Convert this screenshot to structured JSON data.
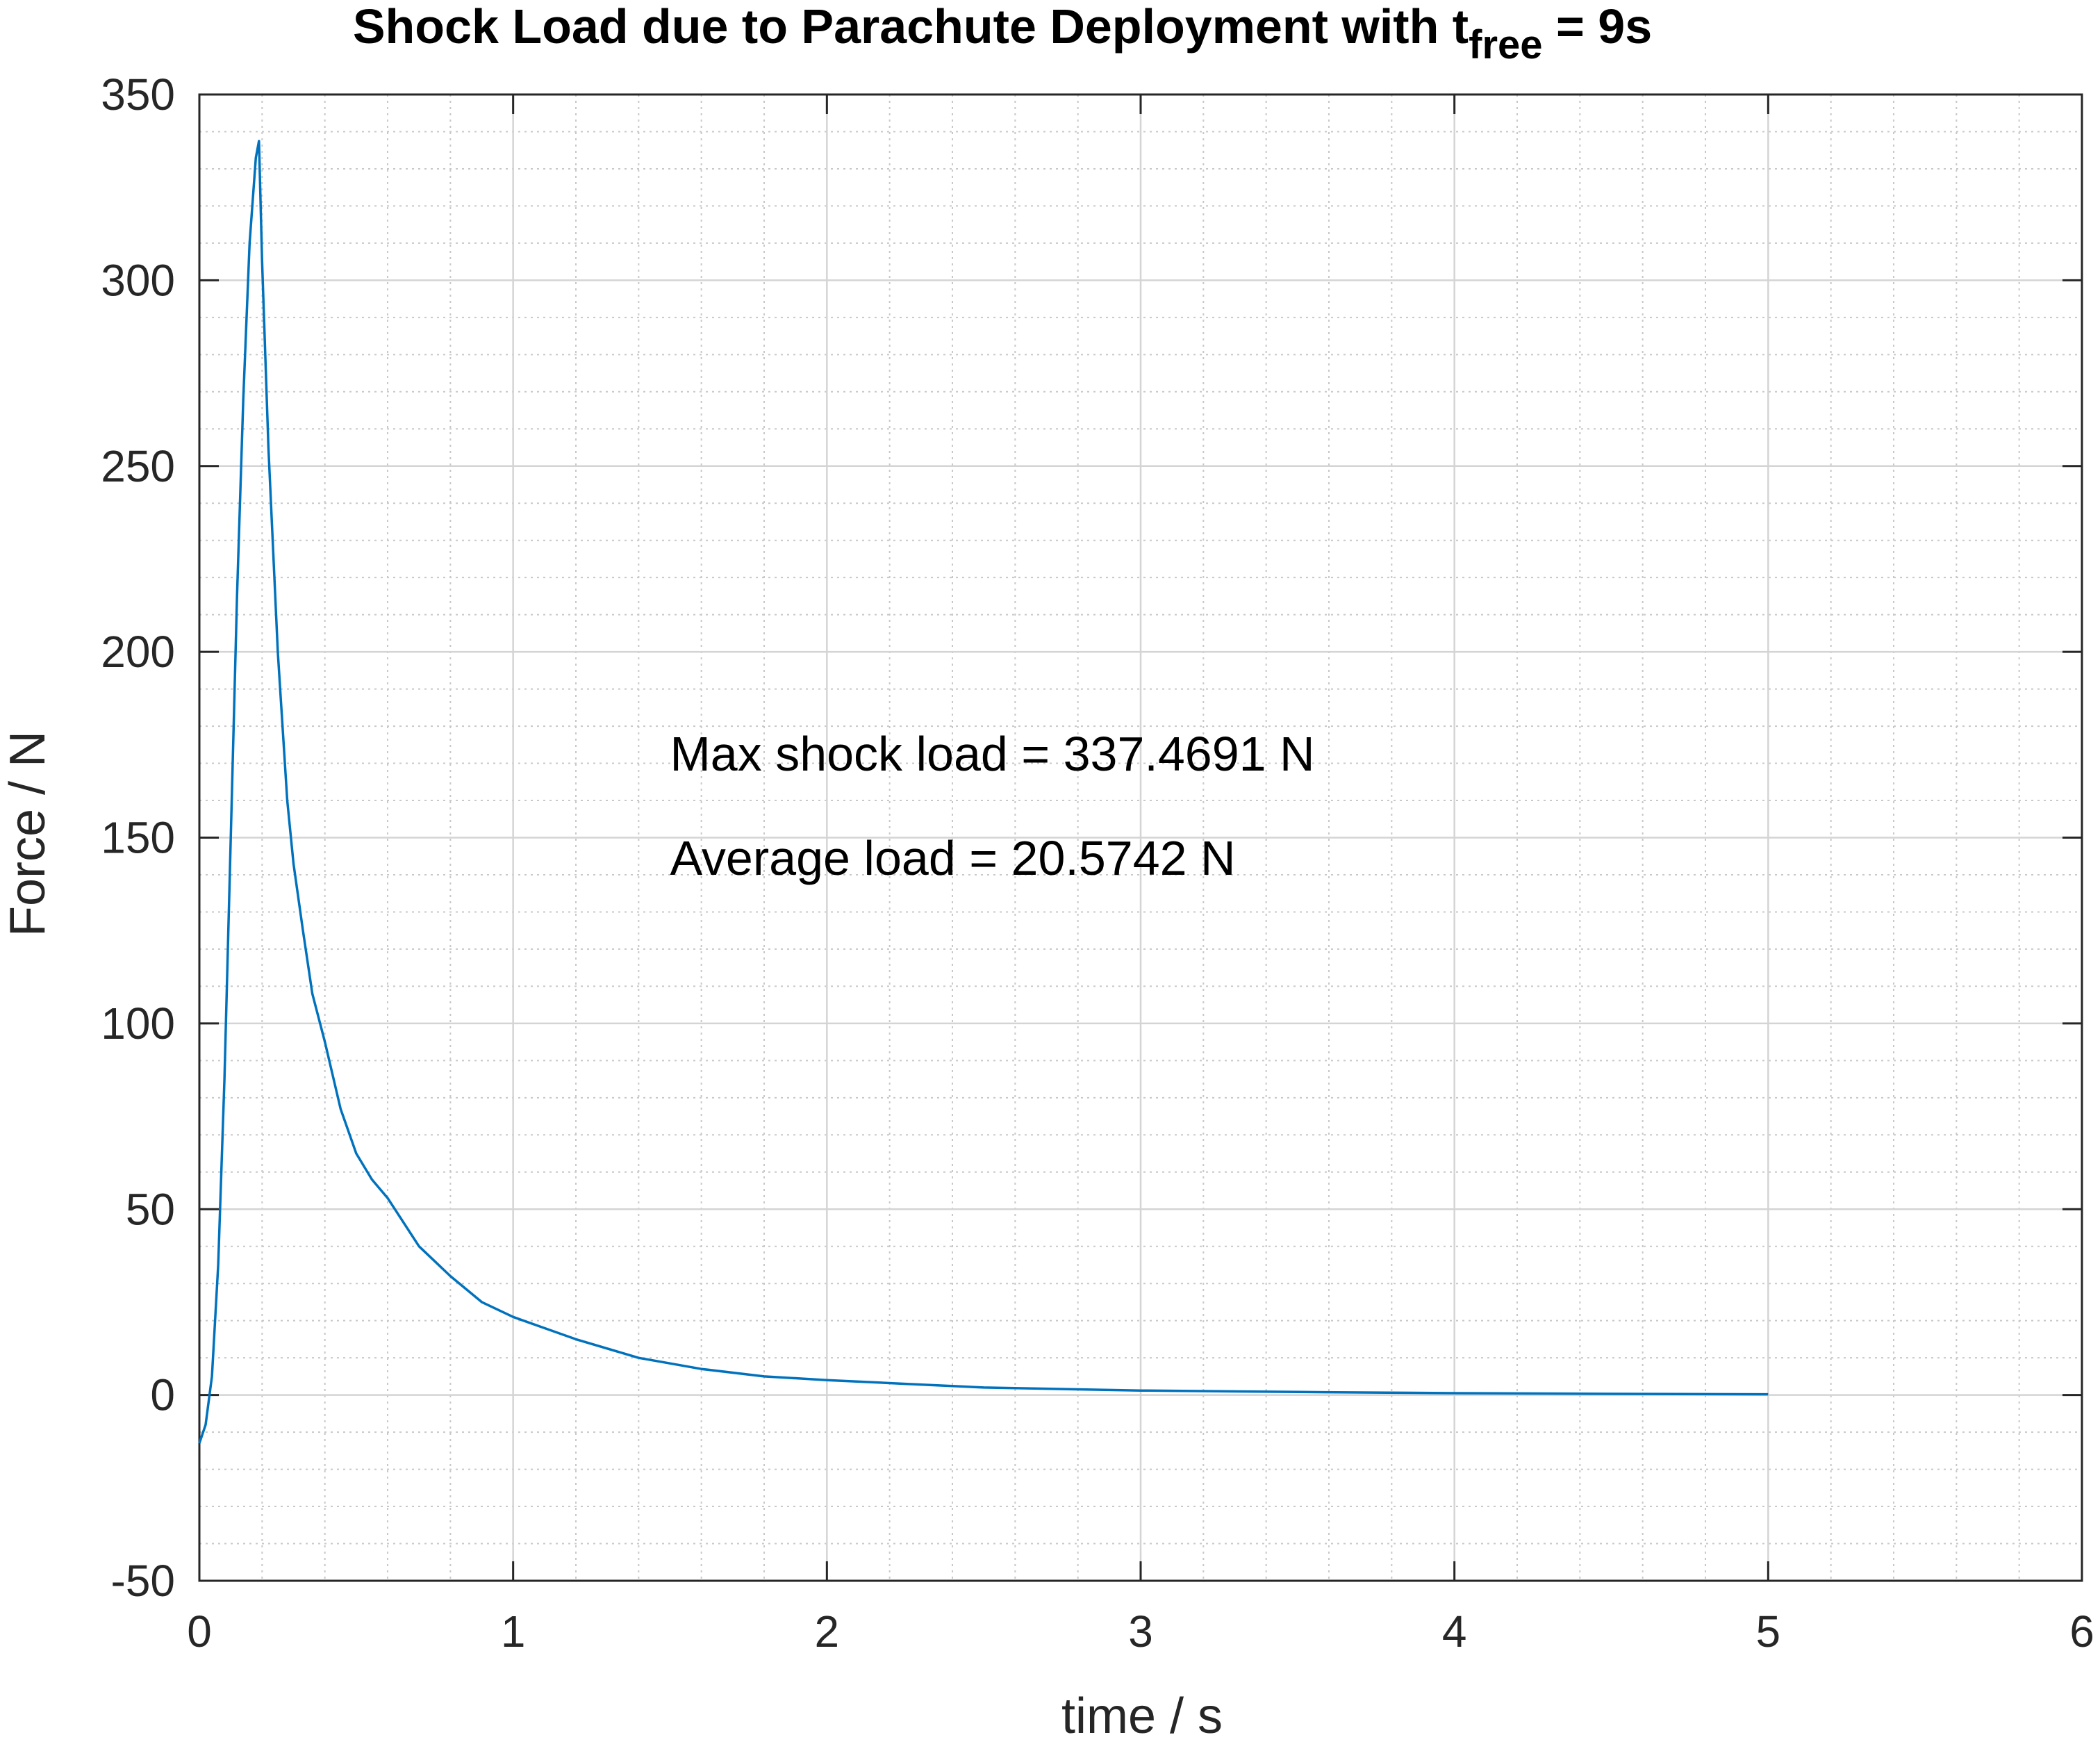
{
  "chart_data": {
    "type": "line",
    "title": {
      "main": "Shock Load due to Parachute Deployment with t",
      "subscript": "free",
      "suffix": " = 9s"
    },
    "xlabel": "time / s",
    "ylabel": "Force / N",
    "xlim": [
      0,
      6
    ],
    "ylim": [
      -50,
      350
    ],
    "xticks": [
      0,
      1,
      2,
      3,
      4,
      5,
      6
    ],
    "yticks": [
      -50,
      0,
      50,
      100,
      150,
      200,
      250,
      300,
      350
    ],
    "grid": true,
    "minor_grid": true,
    "line_color": "#0072BD",
    "annotations": [
      {
        "text": "Max shock load = 337.4691 N",
        "x": 1.5,
        "y": 168
      },
      {
        "text": "Average load = 20.5742 N",
        "x": 1.5,
        "y": 140
      }
    ],
    "series": [
      {
        "x": [
          0,
          0.02,
          0.04,
          0.06,
          0.08,
          0.1,
          0.12,
          0.14,
          0.16,
          0.18,
          0.19,
          0.2,
          0.22,
          0.25,
          0.28,
          0.3,
          0.33,
          0.36,
          0.4,
          0.45,
          0.5,
          0.55,
          0.6,
          0.7,
          0.8,
          0.9,
          1.0,
          1.1,
          1.2,
          1.4,
          1.6,
          1.8,
          2.0,
          2.25,
          2.5,
          3.0,
          3.5,
          4.0,
          4.5,
          5.0
        ],
        "y": [
          -13,
          -8,
          5,
          35,
          85,
          150,
          215,
          268,
          310,
          333,
          337.47,
          305,
          255,
          200,
          160,
          143,
          125,
          108,
          95,
          77,
          65,
          58,
          53,
          40,
          32,
          25,
          21,
          18,
          15,
          10,
          7,
          5,
          4,
          3,
          2,
          1.2,
          0.8,
          0.5,
          0.3,
          0.2
        ]
      }
    ]
  }
}
